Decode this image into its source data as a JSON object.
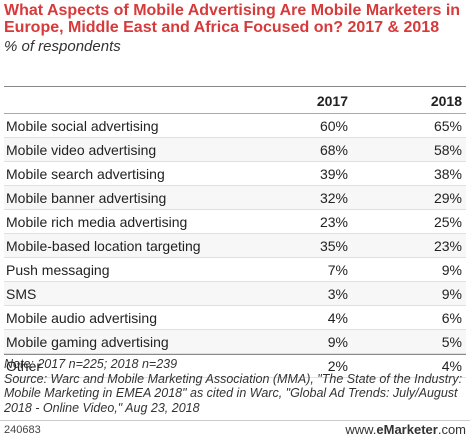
{
  "chart_data": {
    "type": "table",
    "title": "What Aspects of Mobile Advertising Are Mobile Marketers in Europe, Middle East and Africa Focused on? 2017 & 2018",
    "subtitle": "% of respondents",
    "columns": [
      "",
      "2017",
      "2018"
    ],
    "rows": [
      {
        "label": "Mobile social advertising",
        "values": [
          "60%",
          "65%"
        ]
      },
      {
        "label": "Mobile video advertising",
        "values": [
          "68%",
          "58%"
        ]
      },
      {
        "label": "Mobile search advertising",
        "values": [
          "39%",
          "38%"
        ]
      },
      {
        "label": "Mobile banner advertising",
        "values": [
          "32%",
          "29%"
        ]
      },
      {
        "label": "Mobile rich media advertising",
        "values": [
          "23%",
          "25%"
        ]
      },
      {
        "label": "Mobile-based location targeting",
        "values": [
          "35%",
          "23%"
        ]
      },
      {
        "label": "Push messaging",
        "values": [
          "7%",
          "9%"
        ]
      },
      {
        "label": "SMS",
        "values": [
          "3%",
          "9%"
        ]
      },
      {
        "label": "Mobile audio advertising",
        "values": [
          "4%",
          "6%"
        ]
      },
      {
        "label": "Mobile gaming advertising",
        "values": [
          "9%",
          "5%"
        ]
      },
      {
        "label": "Other",
        "values": [
          "2%",
          "4%"
        ]
      }
    ],
    "note": "Note: 2017 n=225; 2018 n=239",
    "source": "Source: Warc and Mobile Marketing Association (MMA), \"The State of the Industry: Mobile Marketing in EMEA 2018\" as cited in Warc, \"Global Ad Trends: July/August 2018 - Online Video,\" Aug 23, 2018"
  },
  "footer": {
    "chart_id": "240683",
    "brand_prefix": "www.",
    "brand_name": "eMarketer",
    "brand_suffix": ".com"
  },
  "colors": {
    "title": "#d63a3a",
    "text": "#222222",
    "stripe": "#f7f7f7"
  }
}
